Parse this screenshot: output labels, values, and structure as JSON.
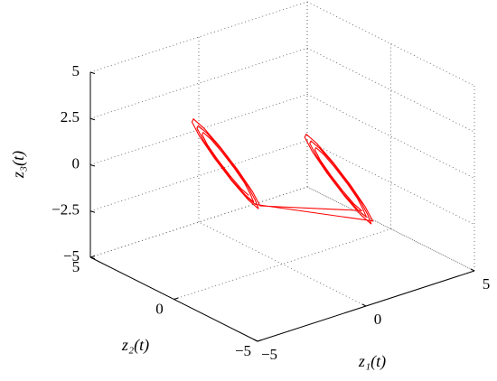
{
  "chart_data": {
    "type": "line3d",
    "xlabel": "z₁(t)",
    "ylabel": "z₂(t)",
    "zlabel": "z₃(t)",
    "xlim": [
      -5,
      5
    ],
    "ylim": [
      -5,
      5
    ],
    "zlim": [
      -5,
      5
    ],
    "xticks": [
      {
        "value": -5,
        "label": "−5"
      },
      0,
      5
    ],
    "yticks": [
      {
        "value": -5,
        "label": "−5"
      },
      0,
      5
    ],
    "zticks": [
      {
        "value": -5,
        "label": "−5"
      },
      {
        "value": -2.5,
        "label": "−2.5"
      },
      0,
      2.5,
      5
    ],
    "grid": true,
    "series": [
      {
        "color": "#ff0000",
        "x": [
          -1.55,
          -1.69,
          -2.07,
          -2.6,
          -3.13,
          -3.51,
          -3.65,
          -3.51,
          -3.13,
          -2.6,
          -2.07,
          -1.69,
          -1.32,
          -1.49,
          -1.96,
          -2.6,
          -3.24,
          -3.71,
          -3.88,
          -3.71,
          -3.24,
          -2.6,
          -1.96,
          -1.49,
          -1.1,
          -1.3,
          -1.85,
          -2.6,
          -3.35,
          -3.9,
          -4.1,
          -3.9,
          -3.35,
          -2.6,
          -1.85,
          -1.3,
          3.65,
          3.51,
          3.13,
          2.6,
          2.07,
          1.69,
          1.55,
          1.69,
          2.07,
          2.6,
          3.13,
          3.51,
          3.88,
          3.71,
          3.24,
          2.6,
          1.96,
          1.49,
          1.32,
          1.49,
          1.96,
          2.6,
          3.24,
          3.71,
          4.1,
          3.9,
          3.35,
          2.6,
          1.85,
          1.3,
          1.1,
          1.3,
          1.85,
          2.6,
          3.35,
          3.9,
          -1.25,
          -1.43,
          -1.92,
          -2.6
        ],
        "y": [
          0,
          0.25,
          0.43,
          0.49,
          0.43,
          0.25,
          0,
          -0.25,
          -0.43,
          -0.49,
          -0.43,
          -0.25,
          0,
          0.3,
          0.52,
          0.6,
          0.52,
          0.3,
          0,
          -0.3,
          -0.52,
          -0.6,
          -0.52,
          -0.3,
          0,
          0.35,
          0.61,
          0.7,
          0.61,
          0.35,
          0,
          -0.35,
          -0.61,
          -0.7,
          -0.61,
          -0.35,
          0,
          0.25,
          0.43,
          0.49,
          0.43,
          0.25,
          0,
          -0.25,
          -0.43,
          -0.49,
          -0.43,
          -0.25,
          0,
          0.3,
          0.52,
          0.6,
          0.52,
          0.3,
          0,
          -0.3,
          -0.52,
          -0.6,
          -0.52,
          -0.3,
          0,
          0.35,
          0.61,
          0.7,
          0.61,
          0.35,
          0,
          -0.35,
          -0.61,
          -0.7,
          -0.61,
          -0.35,
          0,
          0.32,
          0.55,
          0.63
        ],
        "z": [
          -0.7,
          -0.42,
          0.35,
          1.4,
          2.45,
          3.22,
          3.5,
          3.22,
          2.45,
          1.4,
          0.35,
          -0.42,
          -1.15,
          -0.82,
          0.11,
          1.4,
          2.69,
          3.62,
          3.95,
          3.62,
          2.69,
          1.4,
          0.11,
          -0.82,
          -1.6,
          -1.2,
          -0.1,
          1.4,
          2.9,
          4.0,
          4.4,
          4.0,
          2.9,
          1.4,
          -0.1,
          -1.2,
          -3.5,
          -3.22,
          -2.45,
          -1.4,
          -0.35,
          0.42,
          0.7,
          0.42,
          -0.35,
          -1.4,
          -2.45,
          -3.22,
          -3.95,
          -3.62,
          -2.69,
          -1.4,
          -0.11,
          0.82,
          1.15,
          0.82,
          -0.11,
          -1.4,
          -2.69,
          -3.62,
          -4.4,
          -4.0,
          -2.9,
          -1.4,
          0.1,
          1.2,
          1.6,
          1.2,
          0.1,
          -1.4,
          -2.9,
          -4.0,
          -1.3,
          -0.94,
          0.05,
          1.4
        ]
      }
    ]
  }
}
